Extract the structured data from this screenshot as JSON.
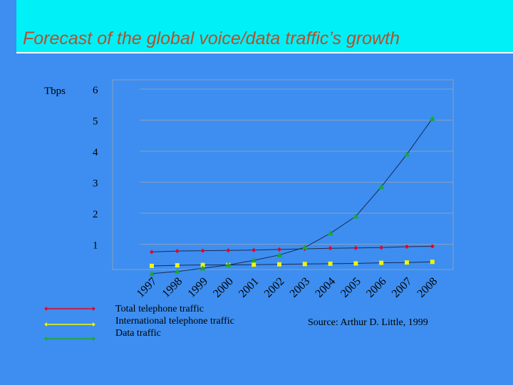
{
  "slide": {
    "title": "Forecast of the global voice/data traffic’s growth",
    "source": "Source: Arthur D. Little, 1999"
  },
  "chart_data": {
    "type": "line",
    "title": "Forecast of the global voice/data traffic’s growth",
    "ylabel": "Tbps",
    "xlabel": "",
    "ylim": [
      0,
      6
    ],
    "yticks": [
      1,
      2,
      3,
      4,
      5,
      6
    ],
    "grid": true,
    "categories": [
      "1997",
      "1998",
      "1999",
      "2000",
      "2001",
      "2002",
      "2003",
      "2004",
      "2005",
      "2006",
      "2007",
      "2008"
    ],
    "series": [
      {
        "name": "Total telephone traffic",
        "color": "#e8001e",
        "marker": "diamond",
        "values": [
          0.75,
          0.78,
          0.79,
          0.8,
          0.81,
          0.83,
          0.85,
          0.87,
          0.88,
          0.89,
          0.92,
          0.93
        ]
      },
      {
        "name": "International telephone traffic",
        "color": "#f5f500",
        "marker": "square",
        "values": [
          0.3,
          0.32,
          0.33,
          0.33,
          0.34,
          0.35,
          0.36,
          0.37,
          0.38,
          0.4,
          0.41,
          0.43
        ]
      },
      {
        "name": "Data traffic",
        "color": "#1aa830",
        "marker": "triangle",
        "values": [
          0.05,
          0.12,
          0.22,
          0.33,
          0.48,
          0.65,
          0.9,
          1.35,
          1.9,
          2.85,
          3.9,
          5.05
        ]
      }
    ],
    "legend_position": "bottom-left"
  }
}
